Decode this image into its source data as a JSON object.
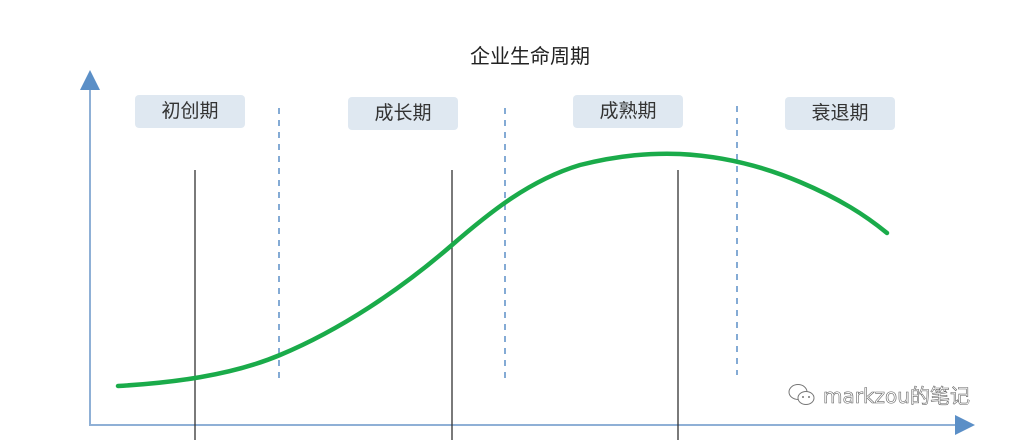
{
  "title": "企业生命周期",
  "stages": [
    {
      "label": "初创期"
    },
    {
      "label": "成长期"
    },
    {
      "label": "成熟期"
    },
    {
      "label": "衰退期"
    }
  ],
  "watermark": {
    "icon": "wechat-icon",
    "text": "markzou的笔记"
  },
  "colors": {
    "curve": "#1aab4a",
    "axis": "#5b8fc7",
    "dashed": "#5b8fc7",
    "stage_bg": "#dfe8f1"
  }
}
